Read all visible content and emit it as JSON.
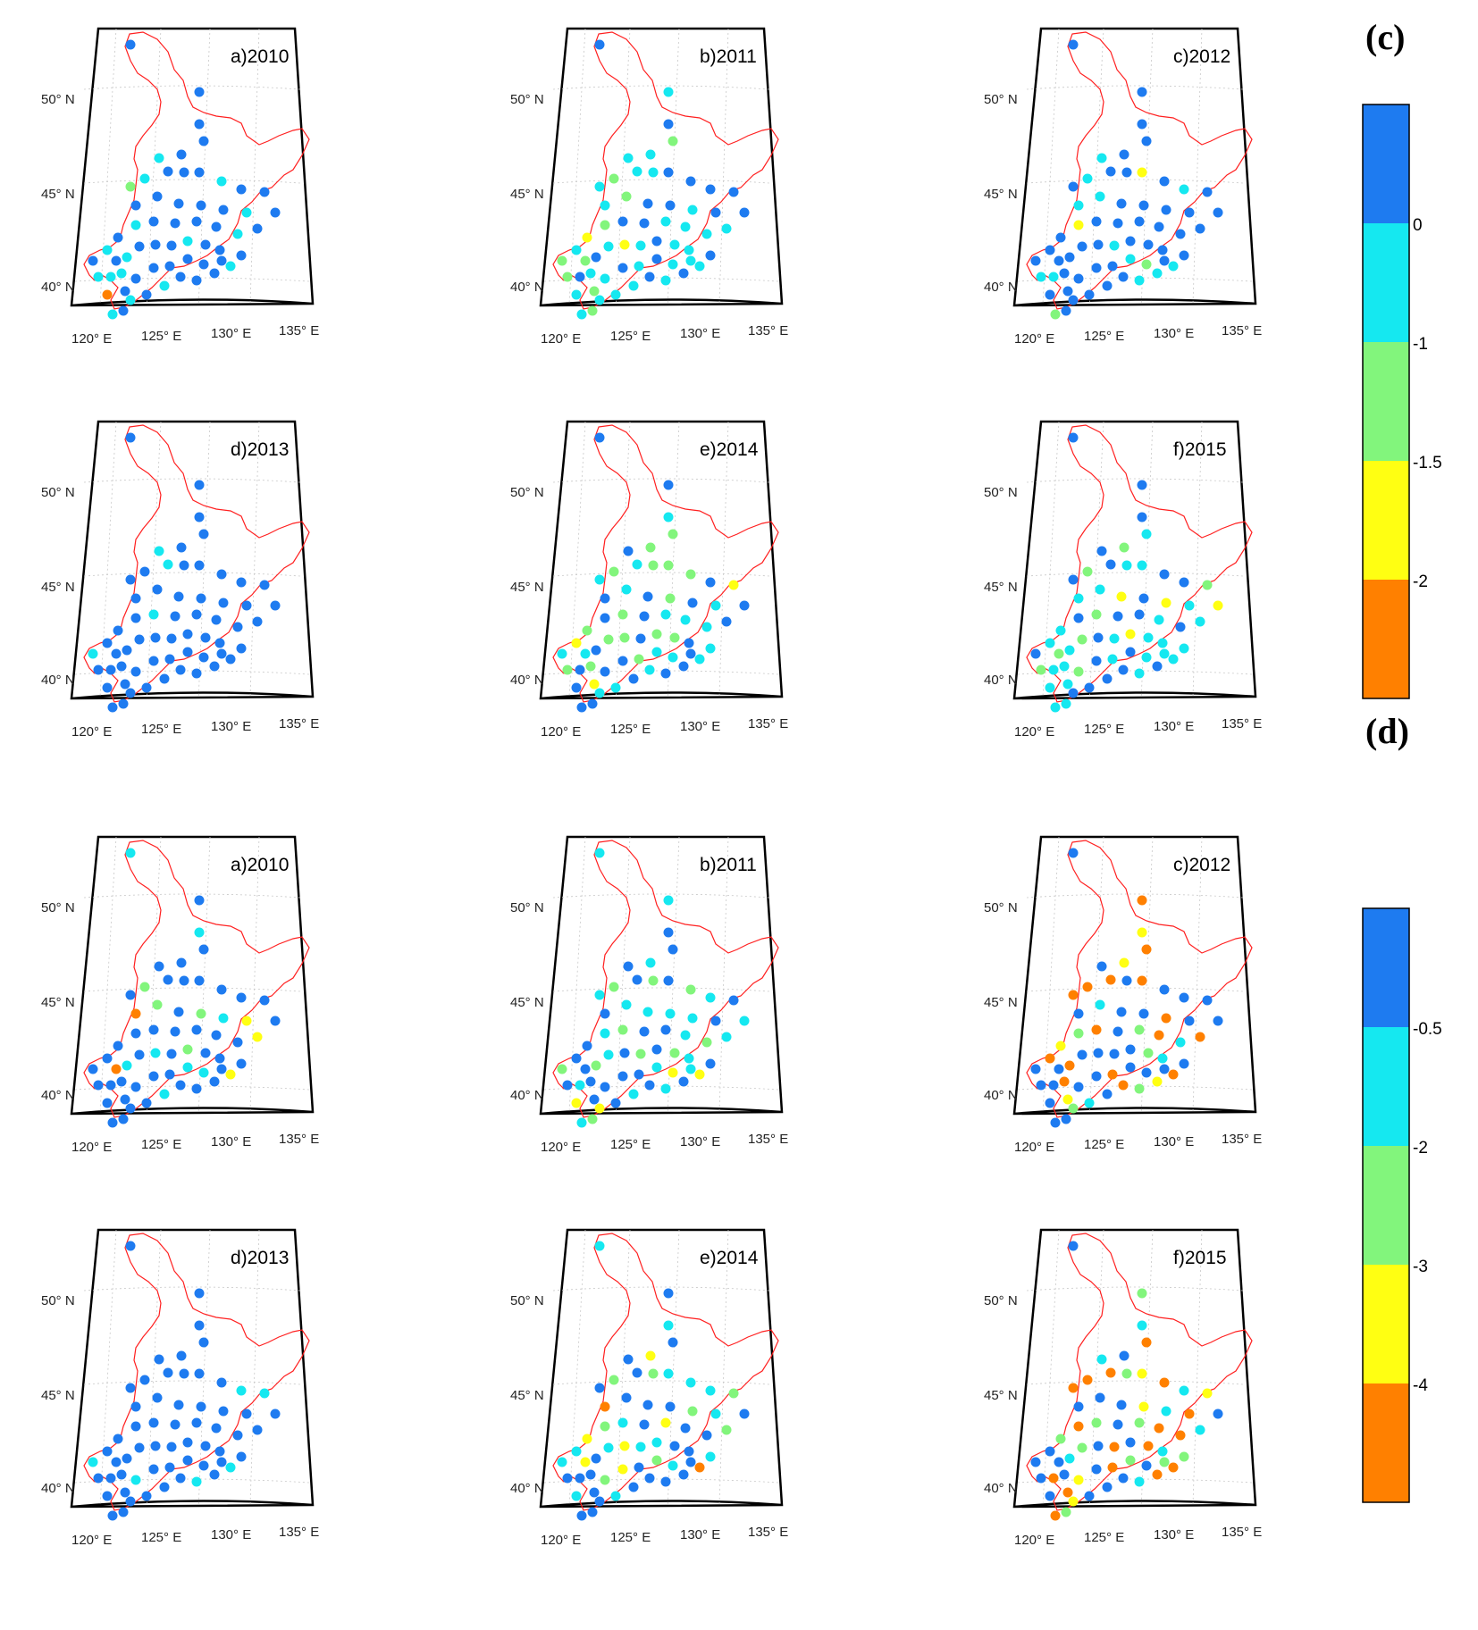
{
  "figure": {
    "sections": [
      {
        "letter": "(c)",
        "colorbar": [
          {
            "color": "#1e7bf0",
            "label": "0"
          },
          {
            "color": "#15e8f0",
            "label": "-1"
          },
          {
            "color": "#82f57c",
            "label": "-1.5"
          },
          {
            "color": "#ffff12",
            "label": "-2"
          },
          {
            "color": "#ff8000",
            "label": ""
          }
        ],
        "maps": [
          {
            "title": "a)2010",
            "mix": [
              0.72,
              0.22,
              0.04,
              0.01,
              0.01
            ]
          },
          {
            "title": "b)2011",
            "mix": [
              0.38,
              0.46,
              0.12,
              0.04,
              0.0
            ]
          },
          {
            "title": "c)2012",
            "mix": [
              0.7,
              0.22,
              0.06,
              0.02,
              0.0
            ]
          },
          {
            "title": "d)2013",
            "mix": [
              0.93,
              0.07,
              0.0,
              0.0,
              0.0
            ]
          },
          {
            "title": "e)2014",
            "mix": [
              0.42,
              0.32,
              0.18,
              0.08,
              0.0
            ]
          },
          {
            "title": "f)2015",
            "mix": [
              0.36,
              0.42,
              0.17,
              0.05,
              0.0
            ]
          }
        ]
      },
      {
        "letter": "(d)",
        "colorbar": [
          {
            "color": "#1e7bf0",
            "label": "-0.5"
          },
          {
            "color": "#15e8f0",
            "label": "-2"
          },
          {
            "color": "#82f57c",
            "label": "-3"
          },
          {
            "color": "#ffff12",
            "label": "-4"
          },
          {
            "color": "#ff8000",
            "label": ""
          }
        ],
        "maps": [
          {
            "title": "a)2010",
            "mix": [
              0.68,
              0.18,
              0.08,
              0.04,
              0.02
            ]
          },
          {
            "title": "b)2011",
            "mix": [
              0.28,
              0.48,
              0.2,
              0.04,
              0.0
            ]
          },
          {
            "title": "c)2012",
            "mix": [
              0.55,
              0.1,
              0.08,
              0.07,
              0.2
            ]
          },
          {
            "title": "d)2013",
            "mix": [
              0.92,
              0.08,
              0.0,
              0.0,
              0.0
            ]
          },
          {
            "title": "e)2014",
            "mix": [
              0.4,
              0.4,
              0.14,
              0.04,
              0.02
            ]
          },
          {
            "title": "f)2015",
            "mix": [
              0.3,
              0.24,
              0.14,
              0.07,
              0.25
            ]
          }
        ]
      }
    ],
    "lat_labels": [
      "50° N",
      "45° N",
      "40° N"
    ],
    "lon_labels": [
      "120° E",
      "125° E",
      "130° E",
      "135° E"
    ],
    "outline_color": "#ff2020",
    "frame_color": "#000000",
    "graticule_color": "#c8c8c8"
  }
}
